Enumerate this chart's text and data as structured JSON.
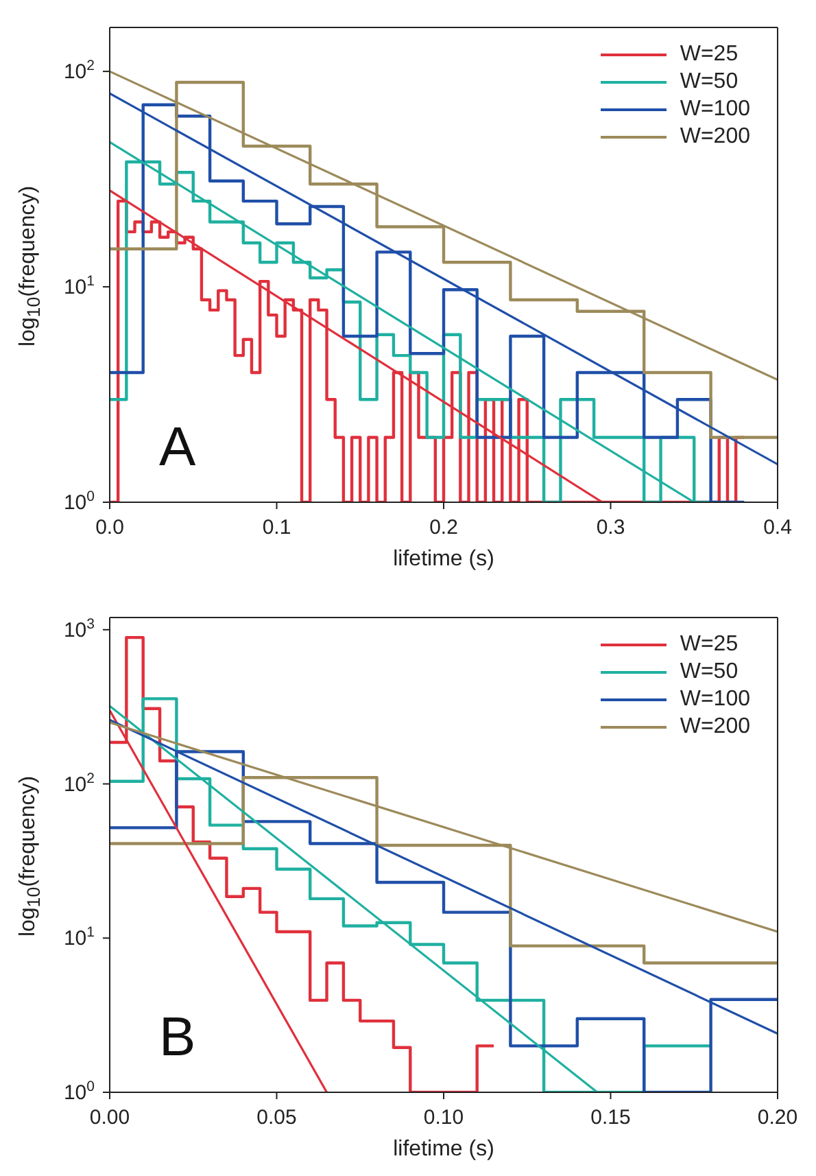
{
  "chart_data": [
    {
      "type": "histogram",
      "log": true,
      "xlabel": "lifetime (s)",
      "ylabel": "log$_{10}$(frequency)",
      "legend": "top right",
      "annotations": [
        "A"
      ],
      "xlim": [
        0,
        0.4
      ],
      "xticks": [
        {
          "value": 0,
          "label": "0.0"
        },
        0.1,
        0.2,
        0.3,
        0.4
      ],
      "ylim": [
        1,
        160
      ],
      "yticks": [
        {
          "value": 1,
          "label": "10$^{0}$"
        },
        {
          "value": 10,
          "label": "10$^{1}$"
        },
        {
          "value": 100,
          "label": "10$^{2}$"
        }
      ],
      "series": [
        {
          "name": "W=25",
          "color": "#e0303c",
          "type": "histogram",
          "bins": [
            0,
            0.005,
            0.01,
            0.015,
            0.02,
            0.025,
            0.03,
            0.035,
            0.04,
            0.045,
            0.05,
            0.055,
            0.06,
            0.065,
            0.07,
            0.075,
            0.08,
            0.085,
            0.09,
            0.095,
            0.1,
            0.105,
            0.11,
            0.115,
            0.12,
            0.125,
            0.13,
            0.135,
            0.14,
            0.145,
            0.15,
            0.155,
            0.16,
            0.165,
            0.17,
            0.175,
            0.18,
            0.185,
            0.19,
            0.195,
            0.2,
            0.205,
            0.21,
            0.215,
            0.22,
            0.225,
            0.23,
            0.235,
            0.24,
            0.245,
            0.25,
            0.255,
            0.26,
            0.265,
            0.27,
            0.275,
            0.28,
            0.285,
            0.29,
            0.295,
            0.3,
            0.305,
            0.31,
            0.315,
            0.32,
            0.325,
            0.33,
            0.335,
            0.34,
            0.345,
            0.35,
            0.355,
            0.36,
            0.365,
            0.37,
            0.375,
            0.38
          ],
          "values": [
            1,
            25,
            18,
            20,
            18,
            20,
            17,
            18,
            16,
            17,
            15,
            8.7,
            7.8,
            9.6,
            8.7,
            4.8,
            5.7,
            4,
            10.6,
            7.4,
            5.9,
            8.7,
            7.8,
            1,
            8.7,
            7.8,
            3,
            2,
            1,
            2,
            1,
            2,
            1,
            2,
            4,
            1,
            4,
            2,
            2,
            1,
            2,
            4,
            1,
            4,
            1,
            3,
            1,
            3,
            1,
            3,
            1,
            1,
            1,
            1,
            1,
            1,
            1,
            1,
            1,
            1,
            1,
            1,
            1,
            1,
            1,
            1,
            1,
            1,
            1,
            1,
            1,
            1,
            1,
            2,
            1,
            2
          ]
        },
        {
          "name": "W=50",
          "color": "#1fb0a0",
          "type": "histogram",
          "bins": [
            0,
            0.01,
            0.02,
            0.03,
            0.04,
            0.05,
            0.06,
            0.07,
            0.08,
            0.09,
            0.1,
            0.11,
            0.12,
            0.13,
            0.14,
            0.15,
            0.16,
            0.17,
            0.18,
            0.19,
            0.2,
            0.21,
            0.22,
            0.23,
            0.24,
            0.25,
            0.26,
            0.27,
            0.28,
            0.29,
            0.3,
            0.31,
            0.32,
            0.33,
            0.34,
            0.35,
            0.36
          ],
          "values": [
            3,
            38,
            38,
            30,
            34,
            25,
            20,
            20,
            16,
            13,
            16,
            13,
            11,
            12,
            8.5,
            3,
            6,
            4.8,
            4,
            2,
            6,
            2,
            3,
            3,
            2,
            2,
            1,
            3,
            3,
            2,
            2,
            2,
            1,
            2,
            2,
            1
          ]
        },
        {
          "name": "W=100",
          "color": "#1f4fa8",
          "type": "histogram",
          "bins": [
            0,
            0.02,
            0.04,
            0.06,
            0.08,
            0.1,
            0.12,
            0.14,
            0.16,
            0.18,
            0.2,
            0.22,
            0.24,
            0.26,
            0.28,
            0.3,
            0.32,
            0.34,
            0.36,
            0.38
          ],
          "values": [
            4,
            70,
            62,
            31,
            25,
            19.6,
            23.6,
            5.9,
            14.5,
            4.9,
            9.7,
            2,
            5.9,
            2,
            4,
            4,
            2,
            3,
            1
          ]
        },
        {
          "name": "W=200",
          "color": "#9c8a5a",
          "type": "histogram",
          "bins": [
            0,
            0.04,
            0.08,
            0.12,
            0.16,
            0.2,
            0.24,
            0.28,
            0.32,
            0.36,
            0.4
          ],
          "values": [
            15,
            89,
            45,
            30,
            19,
            13,
            8.7,
            7.7,
            4,
            2
          ]
        },
        {
          "color": "#e0303c",
          "type": "line",
          "x": [
            0,
            0.295
          ],
          "values": [
            28,
            1
          ]
        },
        {
          "color": "#1fb0a0",
          "type": "line",
          "x": [
            0,
            0.35
          ],
          "values": [
            47,
            1
          ]
        },
        {
          "color": "#1f4fa8",
          "type": "line",
          "x": [
            0,
            0.4
          ],
          "values": [
            79,
            1.5
          ]
        },
        {
          "color": "#9c8a5a",
          "type": "line",
          "x": [
            0,
            0.4
          ],
          "values": [
            100,
            3.7
          ]
        }
      ]
    },
    {
      "type": "histogram",
      "log": true,
      "xlabel": "lifetime (s)",
      "ylabel": "log$_{10}$(frequency)",
      "legend": "top right",
      "annotations": [
        "B"
      ],
      "xlim": [
        0,
        0.2
      ],
      "xticks": [
        {
          "value": 0,
          "label": "0.00"
        },
        {
          "value": 0.05,
          "label": "0.05"
        },
        {
          "value": 0.1,
          "label": "0.10"
        },
        {
          "value": 0.15,
          "label": "0.15"
        },
        {
          "value": 0.2,
          "label": "0.20"
        }
      ],
      "ylim": [
        1,
        1200
      ],
      "yticks": [
        {
          "value": 1,
          "label": "10$^{0}$"
        },
        {
          "value": 10,
          "label": "10$^{1}$"
        },
        {
          "value": 100,
          "label": "10$^{2}$"
        },
        {
          "value": 1000,
          "label": "10$^{3}$"
        }
      ],
      "series": [
        {
          "name": "W=25",
          "color": "#e0303c",
          "type": "histogram",
          "bins": [
            0,
            0.005,
            0.01,
            0.015,
            0.02,
            0.025,
            0.03,
            0.035,
            0.04,
            0.045,
            0.05,
            0.055,
            0.06,
            0.065,
            0.07,
            0.075,
            0.08,
            0.085,
            0.09,
            0.095,
            0.1,
            0.105,
            0.11,
            0.115
          ],
          "values": [
            186,
            890,
            308,
            141,
            71,
            42,
            33,
            18.6,
            21,
            14.7,
            11,
            11,
            3.95,
            6.9,
            3.95,
            2.9,
            2.9,
            1.95,
            1,
            1,
            1,
            1,
            2
          ]
        },
        {
          "name": "W=50",
          "color": "#1fb0a0",
          "type": "histogram",
          "bins": [
            0,
            0.01,
            0.02,
            0.03,
            0.04,
            0.05,
            0.06,
            0.07,
            0.08,
            0.09,
            0.1,
            0.11,
            0.12,
            0.13,
            0.14,
            0.15,
            0.16,
            0.17,
            0.18
          ],
          "values": [
            104,
            357,
            108,
            54,
            38,
            28,
            18,
            12,
            12.6,
            9.1,
            6.9,
            3.95,
            3.95,
            1,
            1,
            1,
            2,
            2
          ]
        },
        {
          "name": "W=100",
          "color": "#1f4fa8",
          "type": "histogram",
          "bins": [
            0,
            0.02,
            0.04,
            0.06,
            0.08,
            0.1,
            0.12,
            0.14,
            0.16,
            0.18,
            0.2
          ],
          "values": [
            52,
            162,
            57,
            41,
            23,
            14.7,
            2,
            3,
            1,
            4
          ]
        },
        {
          "name": "W=200",
          "color": "#9c8a5a",
          "type": "histogram",
          "bins": [
            0,
            0.04,
            0.08,
            0.12,
            0.16,
            0.2
          ],
          "values": [
            41,
            110,
            40,
            8.9,
            6.9
          ]
        },
        {
          "color": "#e0303c",
          "type": "line",
          "x": [
            0,
            0.065
          ],
          "values": [
            300,
            1
          ]
        },
        {
          "color": "#1fb0a0",
          "type": "line",
          "x": [
            0,
            0.146
          ],
          "values": [
            320,
            1
          ]
        },
        {
          "color": "#1f4fa8",
          "type": "line",
          "x": [
            0,
            0.2
          ],
          "values": [
            260,
            2.4
          ]
        },
        {
          "color": "#9c8a5a",
          "type": "line",
          "x": [
            0,
            0.2
          ],
          "values": [
            250,
            11
          ]
        }
      ]
    }
  ]
}
